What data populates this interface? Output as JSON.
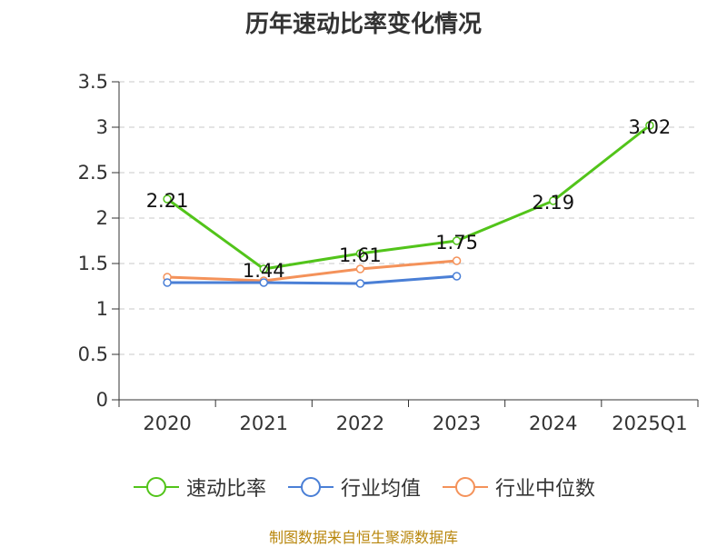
{
  "title": "历年速动比率变化情况",
  "source_note": "制图数据来自恒生聚源数据库",
  "chart_data": {
    "type": "line",
    "categories": [
      "2020",
      "2021",
      "2022",
      "2023",
      "2024",
      "2025Q1"
    ],
    "ylim": [
      0,
      3.5
    ],
    "yticks": [
      "0",
      "0.5",
      "1",
      "1.5",
      "2",
      "2.5",
      "3",
      "3.5"
    ],
    "grid": true,
    "legend_position": "bottom",
    "series": [
      {
        "name": "速动比率",
        "color": "#52c41a",
        "values": [
          2.21,
          1.44,
          1.61,
          1.75,
          2.19,
          3.02
        ],
        "labels": [
          "2.21",
          "1.44",
          "1.61",
          "1.75",
          "2.19",
          "3.02"
        ]
      },
      {
        "name": "行业均值",
        "color": "#4a7fd6",
        "values": [
          1.29,
          1.29,
          1.28,
          1.36,
          null,
          null
        ]
      },
      {
        "name": "行业中位数",
        "color": "#f4925a",
        "values": [
          1.35,
          1.31,
          1.44,
          1.53,
          null,
          null
        ]
      }
    ]
  }
}
